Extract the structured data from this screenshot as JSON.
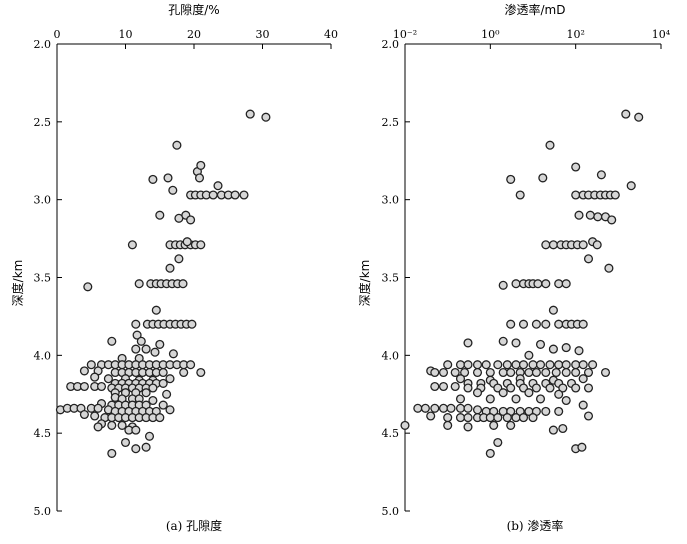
{
  "chart_data": [
    {
      "type": "scatter",
      "panel": "left",
      "caption": "(a) 孔隙度",
      "xlabel": "孔隙度/%",
      "ylabel": "深度/km",
      "x_axis_position": "top",
      "x_scale": "linear",
      "xlim": [
        0,
        40
      ],
      "ylim": [
        2.0,
        5.0
      ],
      "y_inverted": true,
      "xticks": [
        0,
        10,
        20,
        30,
        40
      ],
      "yticks": [
        2.0,
        2.5,
        3.0,
        3.5,
        4.0,
        4.5,
        5.0
      ],
      "grid": false,
      "points": [
        [
          28.2,
          2.45
        ],
        [
          30.5,
          2.47
        ],
        [
          17.5,
          2.65
        ],
        [
          14.0,
          2.87
        ],
        [
          16.2,
          2.86
        ],
        [
          20.5,
          2.82
        ],
        [
          21.0,
          2.78
        ],
        [
          20.8,
          2.86
        ],
        [
          23.5,
          2.91
        ],
        [
          16.9,
          2.94
        ],
        [
          19.5,
          2.97
        ],
        [
          20.2,
          2.97
        ],
        [
          21.0,
          2.97
        ],
        [
          21.8,
          2.97
        ],
        [
          22.8,
          2.97
        ],
        [
          24.0,
          2.97
        ],
        [
          25.0,
          2.97
        ],
        [
          26.0,
          2.97
        ],
        [
          27.3,
          2.97
        ],
        [
          15.0,
          3.1
        ],
        [
          17.8,
          3.12
        ],
        [
          18.8,
          3.1
        ],
        [
          19.5,
          3.13
        ],
        [
          11.0,
          3.29
        ],
        [
          16.5,
          3.29
        ],
        [
          17.3,
          3.29
        ],
        [
          18.0,
          3.29
        ],
        [
          18.7,
          3.29
        ],
        [
          19.5,
          3.29
        ],
        [
          20.2,
          3.29
        ],
        [
          21.0,
          3.29
        ],
        [
          19.0,
          3.27
        ],
        [
          17.8,
          3.38
        ],
        [
          16.5,
          3.44
        ],
        [
          4.5,
          3.56
        ],
        [
          12.0,
          3.54
        ],
        [
          13.7,
          3.54
        ],
        [
          14.5,
          3.54
        ],
        [
          15.2,
          3.54
        ],
        [
          16.0,
          3.54
        ],
        [
          16.8,
          3.54
        ],
        [
          17.6,
          3.54
        ],
        [
          18.4,
          3.54
        ],
        [
          14.5,
          3.71
        ],
        [
          11.5,
          3.8
        ],
        [
          13.2,
          3.8
        ],
        [
          14.0,
          3.8
        ],
        [
          14.8,
          3.8
        ],
        [
          15.6,
          3.8
        ],
        [
          16.5,
          3.8
        ],
        [
          17.3,
          3.8
        ],
        [
          18.1,
          3.8
        ],
        [
          18.9,
          3.8
        ],
        [
          19.7,
          3.8
        ],
        [
          8.0,
          3.91
        ],
        [
          11.7,
          3.87
        ],
        [
          12.3,
          3.91
        ],
        [
          15.0,
          3.93
        ],
        [
          11.5,
          3.96
        ],
        [
          13.0,
          3.96
        ],
        [
          14.3,
          3.98
        ],
        [
          17.0,
          3.99
        ],
        [
          9.5,
          4.02
        ],
        [
          12.0,
          4.02
        ],
        [
          5.0,
          4.06
        ],
        [
          6.5,
          4.06
        ],
        [
          7.5,
          4.06
        ],
        [
          8.5,
          4.06
        ],
        [
          9.5,
          4.06
        ],
        [
          10.5,
          4.06
        ],
        [
          11.5,
          4.06
        ],
        [
          12.5,
          4.06
        ],
        [
          13.5,
          4.06
        ],
        [
          14.5,
          4.06
        ],
        [
          15.5,
          4.06
        ],
        [
          16.5,
          4.06
        ],
        [
          17.5,
          4.06
        ],
        [
          18.5,
          4.06
        ],
        [
          19.5,
          4.06
        ],
        [
          4.0,
          4.1
        ],
        [
          6.0,
          4.1
        ],
        [
          8.5,
          4.11
        ],
        [
          9.5,
          4.11
        ],
        [
          10.5,
          4.11
        ],
        [
          11.5,
          4.11
        ],
        [
          12.5,
          4.11
        ],
        [
          13.5,
          4.11
        ],
        [
          14.5,
          4.11
        ],
        [
          15.5,
          4.11
        ],
        [
          18.5,
          4.11
        ],
        [
          21.0,
          4.11
        ],
        [
          5.5,
          4.14
        ],
        [
          7.5,
          4.15
        ],
        [
          10.0,
          4.15
        ],
        [
          12.0,
          4.16
        ],
        [
          14.0,
          4.16
        ],
        [
          16.5,
          4.15
        ],
        [
          8.5,
          4.18
        ],
        [
          9.5,
          4.18
        ],
        [
          10.5,
          4.18
        ],
        [
          11.5,
          4.18
        ],
        [
          12.5,
          4.18
        ],
        [
          13.5,
          4.18
        ],
        [
          14.5,
          4.18
        ],
        [
          15.5,
          4.18
        ],
        [
          2.0,
          4.2
        ],
        [
          3.0,
          4.2
        ],
        [
          4.0,
          4.2
        ],
        [
          5.5,
          4.2
        ],
        [
          6.5,
          4.2
        ],
        [
          8.0,
          4.21
        ],
        [
          9.0,
          4.21
        ],
        [
          10.0,
          4.21
        ],
        [
          11.0,
          4.21
        ],
        [
          12.0,
          4.21
        ],
        [
          13.0,
          4.21
        ],
        [
          14.0,
          4.21
        ],
        [
          8.5,
          4.24
        ],
        [
          10.0,
          4.24
        ],
        [
          11.5,
          4.24
        ],
        [
          13.0,
          4.24
        ],
        [
          16.0,
          4.25
        ],
        [
          8.5,
          4.27
        ],
        [
          9.5,
          4.28
        ],
        [
          11.0,
          4.28
        ],
        [
          12.0,
          4.28
        ],
        [
          14.0,
          4.29
        ],
        [
          6.5,
          4.31
        ],
        [
          8.0,
          4.32
        ],
        [
          9.0,
          4.32
        ],
        [
          10.0,
          4.32
        ],
        [
          11.0,
          4.32
        ],
        [
          12.0,
          4.32
        ],
        [
          13.0,
          4.32
        ],
        [
          15.5,
          4.32
        ],
        [
          0.5,
          4.35
        ],
        [
          1.5,
          4.34
        ],
        [
          2.5,
          4.34
        ],
        [
          3.5,
          4.34
        ],
        [
          5.0,
          4.34
        ],
        [
          6.0,
          4.34
        ],
        [
          7.5,
          4.35
        ],
        [
          8.5,
          4.36
        ],
        [
          9.5,
          4.36
        ],
        [
          10.5,
          4.36
        ],
        [
          11.5,
          4.36
        ],
        [
          12.5,
          4.36
        ],
        [
          13.5,
          4.36
        ],
        [
          14.5,
          4.36
        ],
        [
          16.5,
          4.35
        ],
        [
          4.0,
          4.38
        ],
        [
          5.5,
          4.39
        ],
        [
          7.0,
          4.4
        ],
        [
          8.0,
          4.4
        ],
        [
          9.0,
          4.4
        ],
        [
          10.0,
          4.4
        ],
        [
          11.0,
          4.4
        ],
        [
          12.0,
          4.4
        ],
        [
          13.0,
          4.4
        ],
        [
          14.0,
          4.4
        ],
        [
          15.0,
          4.4
        ],
        [
          6.5,
          4.44
        ],
        [
          8.0,
          4.45
        ],
        [
          9.5,
          4.45
        ],
        [
          11.0,
          4.46
        ],
        [
          6.0,
          4.46
        ],
        [
          10.5,
          4.48
        ],
        [
          11.5,
          4.48
        ],
        [
          13.5,
          4.52
        ],
        [
          10.0,
          4.56
        ],
        [
          13.0,
          4.59
        ],
        [
          11.5,
          4.6
        ],
        [
          8.0,
          4.63
        ]
      ]
    },
    {
      "type": "scatter",
      "panel": "right",
      "caption": "(b) 渗透率",
      "xlabel": "渗透率/mD",
      "ylabel": "深度/km",
      "x_axis_position": "top",
      "x_scale": "log",
      "xlim": [
        0.01,
        10000
      ],
      "ylim": [
        2.0,
        5.0
      ],
      "y_inverted": true,
      "xticks": [
        "10⁻²",
        "10⁰",
        "10²",
        "10⁴"
      ],
      "yticks": [
        2.0,
        2.5,
        3.0,
        3.5,
        4.0,
        4.5,
        5.0
      ],
      "grid": false,
      "points": [
        [
          1500,
          2.45
        ],
        [
          3000,
          2.47
        ],
        [
          25,
          2.65
        ],
        [
          3,
          2.87
        ],
        [
          17,
          2.86
        ],
        [
          100,
          2.79
        ],
        [
          400,
          2.84
        ],
        [
          2000,
          2.91
        ],
        [
          5,
          2.97
        ],
        [
          100,
          2.97
        ],
        [
          150,
          2.97
        ],
        [
          200,
          2.97
        ],
        [
          280,
          2.97
        ],
        [
          380,
          2.97
        ],
        [
          500,
          2.97
        ],
        [
          650,
          2.97
        ],
        [
          850,
          2.97
        ],
        [
          120,
          3.1
        ],
        [
          220,
          3.1
        ],
        [
          330,
          3.11
        ],
        [
          500,
          3.11
        ],
        [
          700,
          3.13
        ],
        [
          20,
          3.29
        ],
        [
          30,
          3.29
        ],
        [
          45,
          3.29
        ],
        [
          60,
          3.29
        ],
        [
          80,
          3.29
        ],
        [
          110,
          3.29
        ],
        [
          150,
          3.29
        ],
        [
          250,
          3.27
        ],
        [
          320,
          3.29
        ],
        [
          200,
          3.38
        ],
        [
          600,
          3.44
        ],
        [
          2,
          3.55
        ],
        [
          4,
          3.54
        ],
        [
          6,
          3.54
        ],
        [
          8,
          3.54
        ],
        [
          10,
          3.54
        ],
        [
          13,
          3.54
        ],
        [
          20,
          3.54
        ],
        [
          40,
          3.54
        ],
        [
          60,
          3.54
        ],
        [
          30,
          3.71
        ],
        [
          3,
          3.8
        ],
        [
          6,
          3.8
        ],
        [
          12,
          3.8
        ],
        [
          20,
          3.8
        ],
        [
          40,
          3.8
        ],
        [
          60,
          3.8
        ],
        [
          80,
          3.8
        ],
        [
          110,
          3.8
        ],
        [
          150,
          3.8
        ],
        [
          2,
          3.91
        ],
        [
          4,
          3.92
        ],
        [
          15,
          3.93
        ],
        [
          30,
          3.96
        ],
        [
          60,
          3.95
        ],
        [
          120,
          3.97
        ],
        [
          0.3,
          3.92
        ],
        [
          8,
          4.0
        ],
        [
          0.04,
          4.1
        ],
        [
          0.1,
          4.06
        ],
        [
          0.2,
          4.06
        ],
        [
          0.3,
          4.06
        ],
        [
          0.5,
          4.06
        ],
        [
          0.8,
          4.06
        ],
        [
          1.5,
          4.06
        ],
        [
          2.5,
          4.06
        ],
        [
          4,
          4.06
        ],
        [
          6,
          4.06
        ],
        [
          10,
          4.06
        ],
        [
          15,
          4.06
        ],
        [
          25,
          4.06
        ],
        [
          40,
          4.06
        ],
        [
          60,
          4.06
        ],
        [
          100,
          4.06
        ],
        [
          150,
          4.06
        ],
        [
          250,
          4.06
        ],
        [
          0.05,
          4.11
        ],
        [
          0.08,
          4.11
        ],
        [
          0.15,
          4.11
        ],
        [
          0.25,
          4.11
        ],
        [
          0.5,
          4.11
        ],
        [
          1,
          4.11
        ],
        [
          2,
          4.11
        ],
        [
          3,
          4.11
        ],
        [
          5,
          4.11
        ],
        [
          8,
          4.11
        ],
        [
          12,
          4.11
        ],
        [
          20,
          4.11
        ],
        [
          35,
          4.11
        ],
        [
          60,
          4.11
        ],
        [
          100,
          4.11
        ],
        [
          200,
          4.11
        ],
        [
          500,
          4.11
        ],
        [
          0.2,
          4.15
        ],
        [
          1,
          4.16
        ],
        [
          5,
          4.15
        ],
        [
          30,
          4.16
        ],
        [
          150,
          4.15
        ],
        [
          0.3,
          4.18
        ],
        [
          0.6,
          4.18
        ],
        [
          1.2,
          4.18
        ],
        [
          2.5,
          4.18
        ],
        [
          5,
          4.18
        ],
        [
          10,
          4.18
        ],
        [
          20,
          4.18
        ],
        [
          40,
          4.18
        ],
        [
          80,
          4.18
        ],
        [
          0.05,
          4.2
        ],
        [
          0.08,
          4.2
        ],
        [
          0.15,
          4.2
        ],
        [
          0.3,
          4.21
        ],
        [
          0.6,
          4.21
        ],
        [
          1.5,
          4.21
        ],
        [
          3,
          4.21
        ],
        [
          6,
          4.21
        ],
        [
          12,
          4.21
        ],
        [
          25,
          4.21
        ],
        [
          50,
          4.21
        ],
        [
          100,
          4.21
        ],
        [
          200,
          4.21
        ],
        [
          0.5,
          4.24
        ],
        [
          2,
          4.24
        ],
        [
          8,
          4.24
        ],
        [
          40,
          4.25
        ],
        [
          0.2,
          4.28
        ],
        [
          1,
          4.28
        ],
        [
          4,
          4.28
        ],
        [
          15,
          4.28
        ],
        [
          60,
          4.29
        ],
        [
          0.02,
          4.34
        ],
        [
          0.03,
          4.34
        ],
        [
          0.05,
          4.34
        ],
        [
          0.08,
          4.34
        ],
        [
          0.12,
          4.34
        ],
        [
          0.2,
          4.34
        ],
        [
          0.3,
          4.34
        ],
        [
          0.5,
          4.35
        ],
        [
          0.8,
          4.36
        ],
        [
          1.2,
          4.36
        ],
        [
          2,
          4.36
        ],
        [
          3,
          4.36
        ],
        [
          5,
          4.36
        ],
        [
          8,
          4.36
        ],
        [
          12,
          4.36
        ],
        [
          20,
          4.36
        ],
        [
          40,
          4.36
        ],
        [
          150,
          4.32
        ],
        [
          0.04,
          4.39
        ],
        [
          0.1,
          4.4
        ],
        [
          0.2,
          4.4
        ],
        [
          0.3,
          4.4
        ],
        [
          0.5,
          4.4
        ],
        [
          0.7,
          4.4
        ],
        [
          1,
          4.4
        ],
        [
          1.5,
          4.4
        ],
        [
          2.5,
          4.4
        ],
        [
          4,
          4.4
        ],
        [
          6,
          4.4
        ],
        [
          10,
          4.4
        ],
        [
          200,
          4.39
        ],
        [
          0.01,
          4.45
        ],
        [
          0.1,
          4.45
        ],
        [
          0.3,
          4.46
        ],
        [
          1.2,
          4.45
        ],
        [
          3,
          4.45
        ],
        [
          30,
          4.48
        ],
        [
          50,
          4.47
        ],
        [
          1.5,
          4.56
        ],
        [
          1,
          4.63
        ],
        [
          100,
          4.6
        ],
        [
          140,
          4.59
        ]
      ]
    }
  ]
}
